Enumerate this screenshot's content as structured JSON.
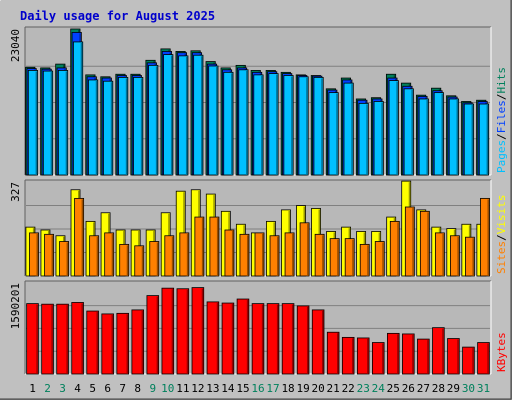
{
  "title": "Daily usage for August 2025",
  "colors": {
    "title": "#0000cc",
    "background": "#c0c0c0",
    "plot": "#b8b8b8",
    "hits": "#00805c",
    "files": "#0040ff",
    "pages": "#00c0ff",
    "visits": "#ffff00",
    "sites": "#ff8000",
    "kbytes": "#ff0000",
    "weekend_day": "#00805c",
    "weekday": "#000000"
  },
  "chart_data": [
    {
      "type": "bar",
      "panel": "top",
      "ymax_label": "23040",
      "ylim": [
        0,
        23040
      ],
      "right_labels": [
        "Pages",
        "Files",
        "Hits"
      ],
      "categories": [
        "1",
        "2",
        "3",
        "4",
        "5",
        "6",
        "7",
        "8",
        "9",
        "10",
        "11",
        "12",
        "13",
        "14",
        "15",
        "16",
        "17",
        "18",
        "19",
        "20",
        "21",
        "22",
        "23",
        "24",
        "25",
        "26",
        "27",
        "28",
        "29",
        "30",
        "31"
      ],
      "series": [
        {
          "name": "Hits",
          "values": [
            17000,
            16900,
            17500,
            23040,
            15800,
            15500,
            15900,
            15900,
            18100,
            19900,
            19500,
            19600,
            17900,
            16900,
            17300,
            16500,
            16500,
            16200,
            15800,
            15700,
            13600,
            15300,
            12000,
            12200,
            15900,
            14500,
            12600,
            13700,
            12500,
            11600,
            11800
          ]
        },
        {
          "name": "Files",
          "values": [
            16800,
            16700,
            16900,
            22500,
            15500,
            15300,
            15700,
            15700,
            17700,
            19500,
            19300,
            19300,
            17500,
            16600,
            16900,
            16200,
            16300,
            16000,
            15700,
            15600,
            13400,
            15000,
            11800,
            12000,
            15300,
            14000,
            12400,
            13300,
            12300,
            11400,
            11600
          ]
        },
        {
          "name": "Pages",
          "values": [
            16500,
            16400,
            16500,
            21000,
            15000,
            14800,
            15400,
            15400,
            17300,
            19000,
            18800,
            18900,
            17200,
            16200,
            16600,
            15800,
            16000,
            15700,
            15500,
            15400,
            13000,
            14500,
            11300,
            11600,
            14900,
            13600,
            12000,
            13000,
            12000,
            11200,
            11200
          ]
        }
      ]
    },
    {
      "type": "bar",
      "panel": "middle",
      "ymax_label": "327",
      "ylim": [
        0,
        327
      ],
      "right_labels": [
        "Sites",
        "Visits"
      ],
      "categories": [
        "1",
        "2",
        "3",
        "4",
        "5",
        "6",
        "7",
        "8",
        "9",
        "10",
        "11",
        "12",
        "13",
        "14",
        "15",
        "16",
        "17",
        "18",
        "19",
        "20",
        "21",
        "22",
        "23",
        "24",
        "25",
        "26",
        "27",
        "28",
        "29",
        "30",
        "31"
      ],
      "series": [
        {
          "name": "Visits",
          "values": [
            170,
            160,
            140,
            300,
            190,
            220,
            160,
            160,
            160,
            220,
            295,
            300,
            285,
            225,
            180,
            150,
            190,
            230,
            245,
            235,
            155,
            170,
            155,
            155,
            205,
            330,
            230,
            170,
            165,
            180,
            180
          ]
        },
        {
          "name": "Sites",
          "values": [
            150,
            145,
            120,
            270,
            140,
            150,
            110,
            105,
            120,
            140,
            150,
            205,
            205,
            160,
            145,
            150,
            140,
            150,
            185,
            145,
            130,
            130,
            110,
            120,
            190,
            240,
            225,
            150,
            140,
            135,
            270
          ]
        }
      ]
    },
    {
      "type": "bar",
      "panel": "bottom",
      "ymax_label": "1590201",
      "ylim": [
        0,
        1590201
      ],
      "right_labels": [
        "KBytes"
      ],
      "categories": [
        "1",
        "2",
        "3",
        "4",
        "5",
        "6",
        "7",
        "8",
        "9",
        "10",
        "11",
        "12",
        "13",
        "14",
        "15",
        "16",
        "17",
        "18",
        "19",
        "20",
        "21",
        "22",
        "23",
        "24",
        "25",
        "26",
        "27",
        "28",
        "29",
        "30",
        "31"
      ],
      "series": [
        {
          "name": "KBytes",
          "values": [
            1230000,
            1220000,
            1220000,
            1250000,
            1100000,
            1050000,
            1060000,
            1120000,
            1370000,
            1500000,
            1490000,
            1510000,
            1260000,
            1240000,
            1310000,
            1230000,
            1230000,
            1230000,
            1190000,
            1120000,
            730000,
            640000,
            630000,
            550000,
            710000,
            700000,
            610000,
            810000,
            620000,
            470000,
            550000
          ]
        }
      ]
    }
  ],
  "x_labels": [
    "1",
    "2",
    "3",
    "4",
    "5",
    "6",
    "7",
    "8",
    "9",
    "10",
    "11",
    "12",
    "13",
    "14",
    "15",
    "16",
    "17",
    "18",
    "19",
    "20",
    "21",
    "22",
    "23",
    "24",
    "25",
    "26",
    "27",
    "28",
    "29",
    "30",
    "31"
  ],
  "weekend_days": [
    2,
    3,
    9,
    10,
    16,
    17,
    23,
    24,
    30,
    31
  ]
}
